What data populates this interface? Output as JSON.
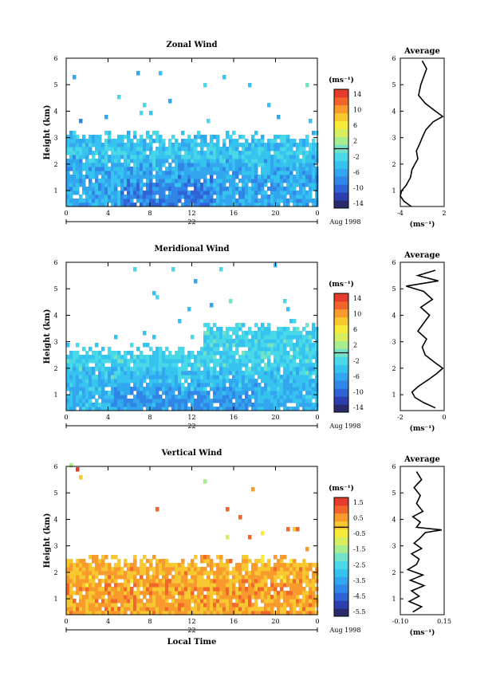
{
  "colors": {
    "zonal_meridional_scale": [
      "#2a2a6e",
      "#2b3fae",
      "#2f63d6",
      "#2f86e6",
      "#32a6ee",
      "#37c3ef",
      "#49d8e8",
      "#73e3c6",
      "#a7ec8e",
      "#d6ef5e",
      "#f7ec3c",
      "#f8c830",
      "#f89a2c",
      "#f2662a",
      "#e53b2a"
    ],
    "vertical_scale": [
      "#2a2a6e",
      "#2b3fae",
      "#2f63d6",
      "#2f86e6",
      "#32a6ee",
      "#37c3ef",
      "#49d8e8",
      "#73e3c6",
      "#a7ec8e",
      "#d6ef5e",
      "#f7ec3c",
      "#f8c830",
      "#f89a2c",
      "#f2662a",
      "#e53b2a"
    ]
  },
  "chart_data": [
    {
      "type": "heatmap",
      "title": "Zonal Wind",
      "ylabel": "Height (km)",
      "unit": "(ms⁻¹)",
      "x_ticks": [
        "0",
        "4",
        "8",
        "12",
        "16",
        "20",
        "0"
      ],
      "y_ticks": [
        "1",
        "2",
        "3",
        "4",
        "5",
        "6"
      ],
      "xlim": [
        0,
        24
      ],
      "ylim": [
        0.4,
        6
      ],
      "date_day": "22",
      "date_label": "Aug 1998",
      "colorbar_labels": [
        "14",
        "10",
        "6",
        "2",
        "-2",
        "-6",
        "-10",
        "-14"
      ],
      "colorbar_range": [
        -16,
        16
      ],
      "layers": [
        {
          "ymax": 3.0,
          "value": -4
        },
        {
          "ymax": 2.0,
          "value": -6
        },
        {
          "ymax": 1.3,
          "value": -9,
          "x_from": 5,
          "x_to": 14
        }
      ],
      "profile": {
        "title": "Average",
        "xlabel": "(ms⁻¹)",
        "x_ticks": [
          "-4",
          "2"
        ],
        "xlim": [
          -4,
          2
        ],
        "y": [
          0.4,
          0.6,
          0.8,
          1.0,
          1.2,
          1.5,
          1.8,
          2.0,
          2.2,
          2.5,
          2.8,
          3.0,
          3.3,
          3.6,
          3.8,
          4.0,
          4.3,
          4.6,
          5.0,
          5.3,
          5.6,
          5.9
        ],
        "x": [
          -2.5,
          -3.5,
          -4.0,
          -3.8,
          -3.2,
          -2.6,
          -2.4,
          -2.0,
          -1.6,
          -1.8,
          -1.3,
          -1.0,
          -0.5,
          0.5,
          1.8,
          0.8,
          -0.6,
          -1.5,
          -1.2,
          -0.8,
          -0.4,
          -1.0
        ]
      }
    },
    {
      "type": "heatmap",
      "title": "Meridional Wind",
      "ylabel": "Height (km)",
      "unit": "(ms⁻¹)",
      "x_ticks": [
        "0",
        "4",
        "8",
        "12",
        "16",
        "20",
        "0"
      ],
      "y_ticks": [
        "1",
        "2",
        "3",
        "4",
        "5",
        "6"
      ],
      "xlim": [
        0,
        24
      ],
      "ylim": [
        0.4,
        6
      ],
      "date_day": "22",
      "date_label": "Aug 1998",
      "colorbar_labels": [
        "14",
        "10",
        "6",
        "2",
        "-2",
        "-6",
        "-10",
        "-14"
      ],
      "colorbar_range": [
        -16,
        16
      ],
      "layers": [
        {
          "ymax": 2.6,
          "value": -3,
          "x_from": 0,
          "x_to": 13
        },
        {
          "ymax": 3.5,
          "value": -3,
          "x_from": 13,
          "x_to": 24
        },
        {
          "ymax": 1.8,
          "value": -5
        },
        {
          "ymax": 1.2,
          "value": -7,
          "x_from": 4,
          "x_to": 18
        }
      ],
      "profile": {
        "title": "Average",
        "xlabel": "(ms⁻¹)",
        "x_ticks": [
          "-2",
          "0"
        ],
        "xlim": [
          -3,
          0
        ],
        "y": [
          0.5,
          0.7,
          0.9,
          1.1,
          1.3,
          1.6,
          1.8,
          2.0,
          2.2,
          2.5,
          2.8,
          3.1,
          3.4,
          3.7,
          4.0,
          4.3,
          4.6,
          4.9,
          5.1,
          5.3,
          5.5,
          5.7
        ],
        "x": [
          -0.6,
          -1.4,
          -2.0,
          -2.2,
          -1.8,
          -1.0,
          -0.5,
          -0.1,
          -0.6,
          -1.3,
          -1.5,
          -1.2,
          -1.8,
          -1.4,
          -1.0,
          -1.6,
          -0.8,
          -1.4,
          -2.6,
          -0.4,
          -1.8,
          -0.6
        ]
      }
    },
    {
      "type": "heatmap",
      "title": "Vertical Wind",
      "ylabel": "Height (km)",
      "xlabel": "Local Time",
      "unit": "(ms⁻¹)",
      "x_ticks": [
        "0",
        "4",
        "8",
        "12",
        "16",
        "20",
        "0"
      ],
      "y_ticks": [
        "1",
        "2",
        "3",
        "4",
        "5",
        "6"
      ],
      "xlim": [
        0,
        24
      ],
      "ylim": [
        0.4,
        6
      ],
      "date_day": "22",
      "date_label": "Aug 1998",
      "colorbar_labels": [
        "1.5",
        "0.5",
        "-0.5",
        "-1.5",
        "-2.5",
        "-3.5",
        "-4.5",
        "-5.5"
      ],
      "colorbar_range": [
        -6,
        2
      ],
      "layers": [
        {
          "ymax": 2.4,
          "value": 0.4
        },
        {
          "ymax": 1.6,
          "value": 0.6
        },
        {
          "ymax": 0.9,
          "value": 0.5
        }
      ],
      "profile": {
        "title": "Average",
        "xlabel": "(ms⁻¹)",
        "x_ticks": [
          "-0.10",
          "0.15"
        ],
        "xlim": [
          -0.15,
          0.2
        ],
        "y": [
          0.5,
          0.7,
          0.9,
          1.1,
          1.3,
          1.5,
          1.7,
          1.9,
          2.1,
          2.3,
          2.5,
          2.7,
          2.9,
          3.1,
          3.3,
          3.5,
          3.6,
          3.7,
          3.9,
          4.1,
          4.3,
          4.6,
          4.9,
          5.2,
          5.5,
          5.8
        ],
        "x": [
          -0.05,
          0.02,
          -0.08,
          0.0,
          -0.06,
          0.04,
          -0.07,
          0.03,
          -0.09,
          -0.02,
          0.0,
          -0.06,
          0.02,
          -0.04,
          0.01,
          0.05,
          0.18,
          -0.02,
          0.01,
          -0.05,
          0.03,
          -0.02,
          0.01,
          -0.04,
          0.02,
          -0.02
        ]
      }
    }
  ]
}
